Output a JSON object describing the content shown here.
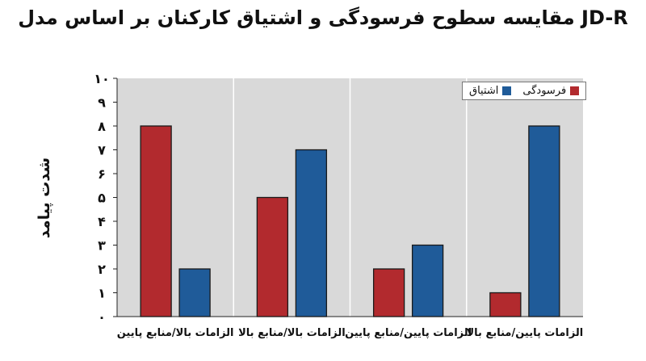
{
  "chart_data": {
    "type": "bar",
    "title": "مقایسه سطوح فرسودگی و اشتیاق کارکنان بر اساس مدل JD-R",
    "xlabel": "",
    "ylabel": "شدت پیامد",
    "ylim": [
      0,
      10
    ],
    "yticks": [
      "۰",
      "۱",
      "۲",
      "۳",
      "۴",
      "۵",
      "۶",
      "۷",
      "۸",
      "۹",
      "۱۰"
    ],
    "categories": [
      "الزامات بالا/منابع پایین",
      "الزامات بالا/منابع بالا",
      "الزامات پایین/منابع پایین",
      "الزامات پایین/منابع بالا"
    ],
    "series": [
      {
        "name": "فرسودگی",
        "color": "#b22a2e",
        "values": [
          8,
          5,
          2,
          1
        ]
      },
      {
        "name": "اشتیاق",
        "color": "#1f5b99",
        "values": [
          2,
          7,
          3,
          8
        ]
      }
    ],
    "grid": false,
    "legend_position": "top-right",
    "plot_background": "#d9d9d9"
  }
}
